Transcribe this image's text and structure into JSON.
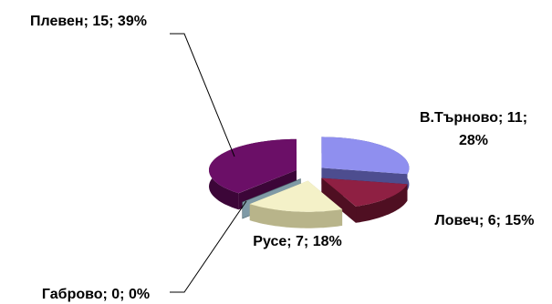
{
  "chart_data": {
    "type": "pie",
    "style": "3d-exploded",
    "title": "",
    "slices": [
      {
        "name": "В.Търново",
        "value": 11,
        "percent": 28,
        "label": [
          "В.Търново; 11;",
          "28%"
        ],
        "color": "#8f8fef",
        "side_color": "#4d4d8f"
      },
      {
        "name": "Ловеч",
        "value": 6,
        "percent": 15,
        "label": [
          "Ловеч; 6; 15%"
        ],
        "color": "#8f2043",
        "side_color": "#4f0f22"
      },
      {
        "name": "Русе",
        "value": 7,
        "percent": 18,
        "label": [
          "Русе; 7; 18%"
        ],
        "color": "#f4f1c8",
        "side_color": "#b8b48a"
      },
      {
        "name": "Габрово",
        "value": 0,
        "percent": 0,
        "label": [
          "Габрово; 0; 0%"
        ],
        "color": "#7f9aa6",
        "side_color": "#4b626c"
      },
      {
        "name": "Плевен",
        "value": 15,
        "percent": 39,
        "label": [
          "Плевен; 15; 39%"
        ],
        "color": "#6b0f67",
        "side_color": "#3c0638"
      }
    ]
  }
}
